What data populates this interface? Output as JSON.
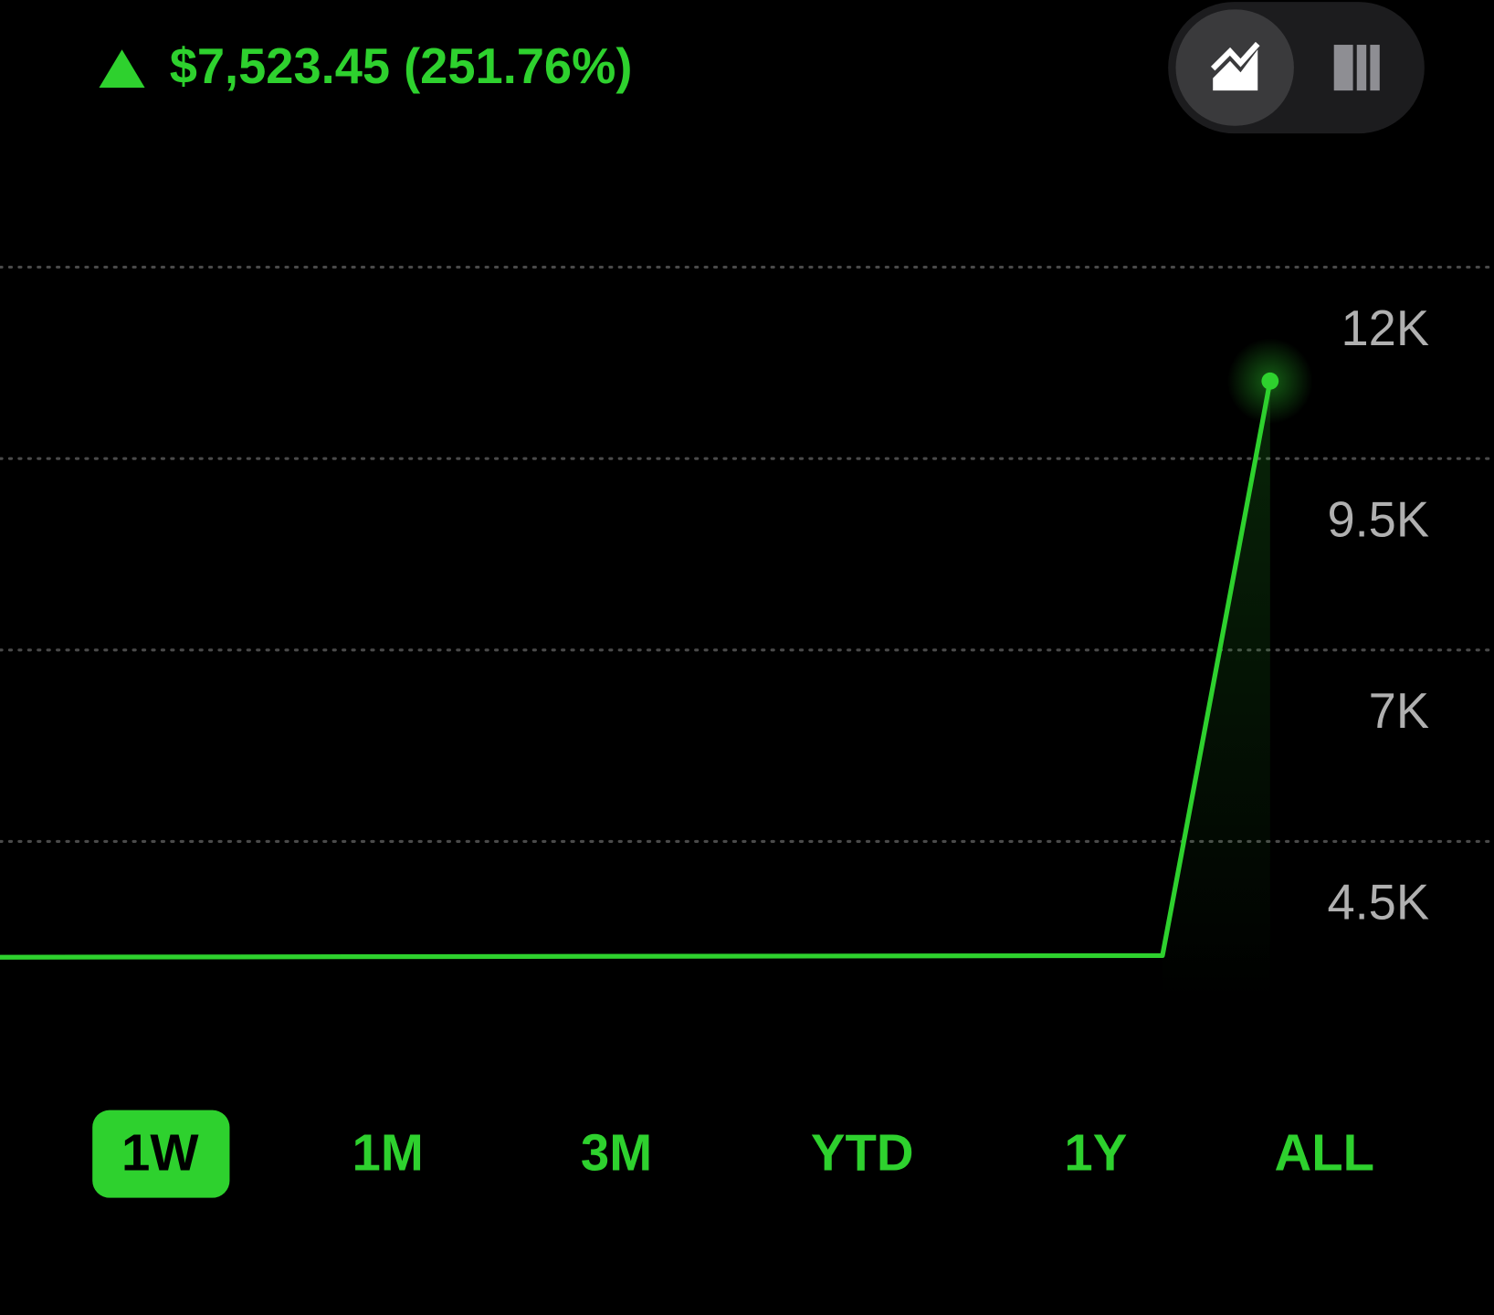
{
  "header": {
    "change": "$7,523.45",
    "change_percent": "(251.76%)"
  },
  "chart_data": {
    "type": "line",
    "x": [
      0,
      10.8,
      11.8
    ],
    "values": [
      2988,
      3010,
      10512
    ],
    "color": "#2ed12e",
    "xlim": [
      0,
      11.8
    ],
    "ylim": [
      1800,
      13000
    ],
    "yticks": [
      {
        "value": 12000,
        "label": "12K"
      },
      {
        "value": 9500,
        "label": "9.5K"
      },
      {
        "value": 7000,
        "label": "7K"
      },
      {
        "value": 4500,
        "label": "4.5K"
      }
    ],
    "grid": true
  },
  "ranges": {
    "labels": [
      "1W",
      "1M",
      "3M",
      "YTD",
      "1Y",
      "ALL"
    ],
    "selected": 0
  }
}
